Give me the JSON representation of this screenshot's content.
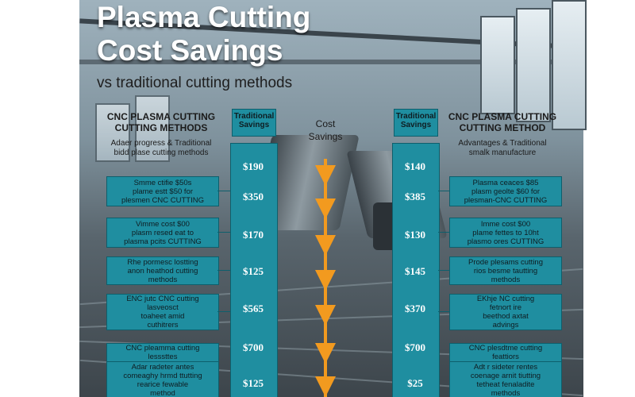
{
  "title": {
    "line1": "Plasma Cutting",
    "line2": "Cost Savings",
    "subtitle": "vs traditional cutting methods"
  },
  "center": {
    "header1": "Cost",
    "header2": "Savings"
  },
  "left": {
    "header1": "CNC PLASMA CUTTING",
    "header2": "CUTTING METHODS",
    "caption1": "Adaer progress & Traditional",
    "caption2": "bidd plase cutting methods",
    "tab1": "Traditional",
    "tab2": "Savings",
    "prices": [
      "$190",
      "$350",
      "$170",
      "$125",
      "$565",
      "$700",
      "$125"
    ],
    "boxes": [
      "Smme ctifie $50s\nplame estt $50 for\nplesmen CNC CUTTING",
      "Vimme cost $00\nplasm resed eat to\nplasma pcits CUTTING",
      "Rhe pormesc lostting\nanon heathod cutting\nmethods",
      "ENC jutc CNC cutting\nlasveosct\ntoaheet amid\ncuthitrers",
      "CNC pleamma cutting\nlesssttes",
      "Adar radeter antes\ncomeaghy hrmd ttutting\nrearice fewable\nmethod"
    ]
  },
  "right": {
    "header1": "CNC PLASMA CUTTING",
    "header2": "CUTTING METHOD",
    "caption1": "Advantages & Traditional",
    "caption2": "smalk manufacture",
    "tab1": "Traditional",
    "tab2": "Savings",
    "prices": [
      "$140",
      "$385",
      "$130",
      "$145",
      "$370",
      "$700",
      "$25"
    ],
    "boxes": [
      "Plasma ceaces $85\nplasm geolte $60 for\nplesman-CNC CUTTING",
      "Imme cost $00\nplame fettes to 10ht\nplasmo ores CUTTING",
      "Prode plesams cutting\nrios besme tautting\nmethods",
      "EKhje NC cutting\nfetnort ire\nbeethod axtat\nadvings",
      "CNC plesdtme cutting\nfeattiors",
      "Adt r sideter rentes\ncoenage arnit tiutting\ntetheat fenaladite\nmethods"
    ]
  }
}
